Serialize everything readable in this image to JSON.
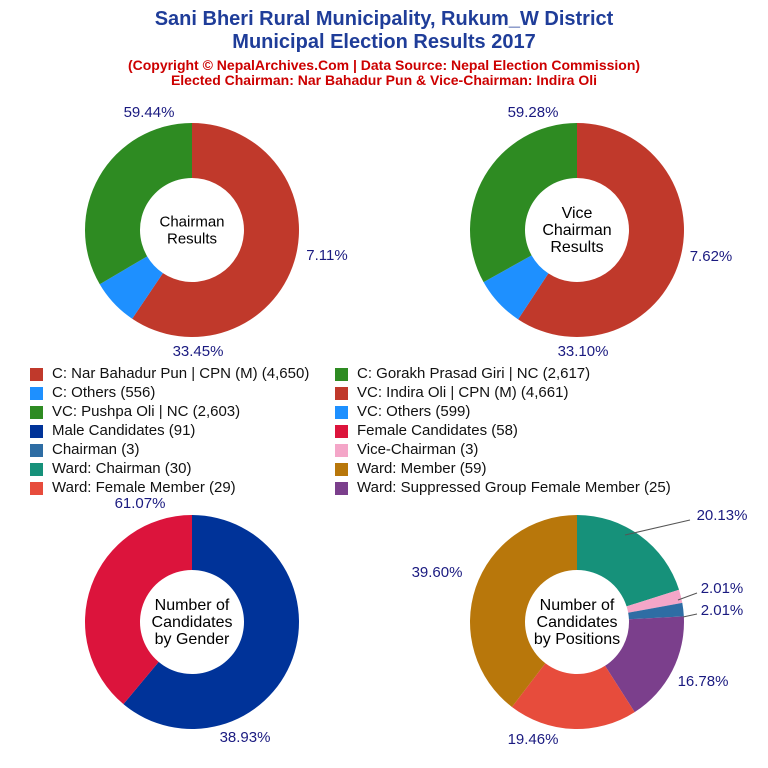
{
  "header": {
    "title_line1": "Sani Bheri Rural Municipality, Rukum_W District",
    "title_line2": "Municipal Election Results 2017",
    "subtitle_line1": "(Copyright © NepalArchives.Com | Data Source: Nepal Election Commission)",
    "subtitle_line2": "Elected Chairman: Nar Bahadur Pun & Vice-Chairman: Indira Oli"
  },
  "chart_data": [
    {
      "type": "pie",
      "donut": true,
      "center_label": [
        "Chairman",
        "Results"
      ],
      "slices": [
        {
          "label": "C: Nar Bahadur Pun | CPN (M)",
          "value": 4650,
          "percent_label": "59.44%",
          "color": "#c0392b"
        },
        {
          "label": "C: Others",
          "value": 556,
          "percent_label": "7.11%",
          "color": "#1e90ff"
        },
        {
          "label": "C: Gorakh Prasad Giri | NC",
          "value": 2617,
          "percent_label": "33.45%",
          "color": "#2e8b22"
        }
      ]
    },
    {
      "type": "pie",
      "donut": true,
      "center_label": [
        "Vice",
        "Chairman",
        "Results"
      ],
      "slices": [
        {
          "label": "VC: Indira Oli | CPN (M)",
          "value": 4661,
          "percent_label": "59.28%",
          "color": "#c0392b"
        },
        {
          "label": "VC: Others",
          "value": 599,
          "percent_label": "7.62%",
          "color": "#1e90ff"
        },
        {
          "label": "VC: Pushpa Oli | NC",
          "value": 2603,
          "percent_label": "33.10%",
          "color": "#2e8b22"
        }
      ]
    },
    {
      "type": "pie",
      "donut": true,
      "center_label": [
        "Number of",
        "Candidates",
        "by Gender"
      ],
      "slices": [
        {
          "label": "Male Candidates",
          "value": 91,
          "percent_label": "61.07%",
          "color": "#003399"
        },
        {
          "label": "Female Candidates",
          "value": 58,
          "percent_label": "38.93%",
          "color": "#dc143c"
        }
      ]
    },
    {
      "type": "pie",
      "donut": true,
      "center_label": [
        "Number of",
        "Candidates",
        "by Positions"
      ],
      "slices": [
        {
          "label": "Ward: Chairman",
          "value": 30,
          "percent_label": "20.13%",
          "color": "#16917a"
        },
        {
          "label": "Vice-Chairman",
          "value": 3,
          "percent_label": "2.01%",
          "color": "#f4a6c8"
        },
        {
          "label": "Chairman",
          "value": 3,
          "percent_label": "2.01%",
          "color": "#2e6da4"
        },
        {
          "label": "Ward: Suppressed Group Female Member",
          "value": 25,
          "percent_label": "16.78%",
          "color": "#7b3f8c"
        },
        {
          "label": "Ward: Female Member",
          "value": 29,
          "percent_label": "19.46%",
          "color": "#e74c3c"
        },
        {
          "label": "Ward: Member",
          "value": 59,
          "percent_label": "39.60%",
          "color": "#b8770b"
        }
      ]
    }
  ],
  "legend": [
    {
      "text": "C: Nar Bahadur Pun | CPN (M) (4,650)",
      "color": "#c0392b"
    },
    {
      "text": "C: Gorakh Prasad Giri | NC (2,617)",
      "color": "#2e8b22"
    },
    {
      "text": "C: Others (556)",
      "color": "#1e90ff"
    },
    {
      "text": "VC: Indira Oli | CPN (M) (4,661)",
      "color": "#c0392b"
    },
    {
      "text": "VC: Pushpa Oli | NC (2,603)",
      "color": "#2e8b22"
    },
    {
      "text": "VC: Others (599)",
      "color": "#1e90ff"
    },
    {
      "text": "Male Candidates (91)",
      "color": "#003399"
    },
    {
      "text": "Female Candidates (58)",
      "color": "#dc143c"
    },
    {
      "text": "Chairman (3)",
      "color": "#2e6da4"
    },
    {
      "text": "Vice-Chairman (3)",
      "color": "#f4a6c8"
    },
    {
      "text": "Ward: Chairman (30)",
      "color": "#16917a"
    },
    {
      "text": "Ward: Member (59)",
      "color": "#b8770b"
    },
    {
      "text": "Ward: Female Member (29)",
      "color": "#e74c3c"
    },
    {
      "text": "Ward: Suppressed Group Female Member (25)",
      "color": "#7b3f8c"
    }
  ]
}
